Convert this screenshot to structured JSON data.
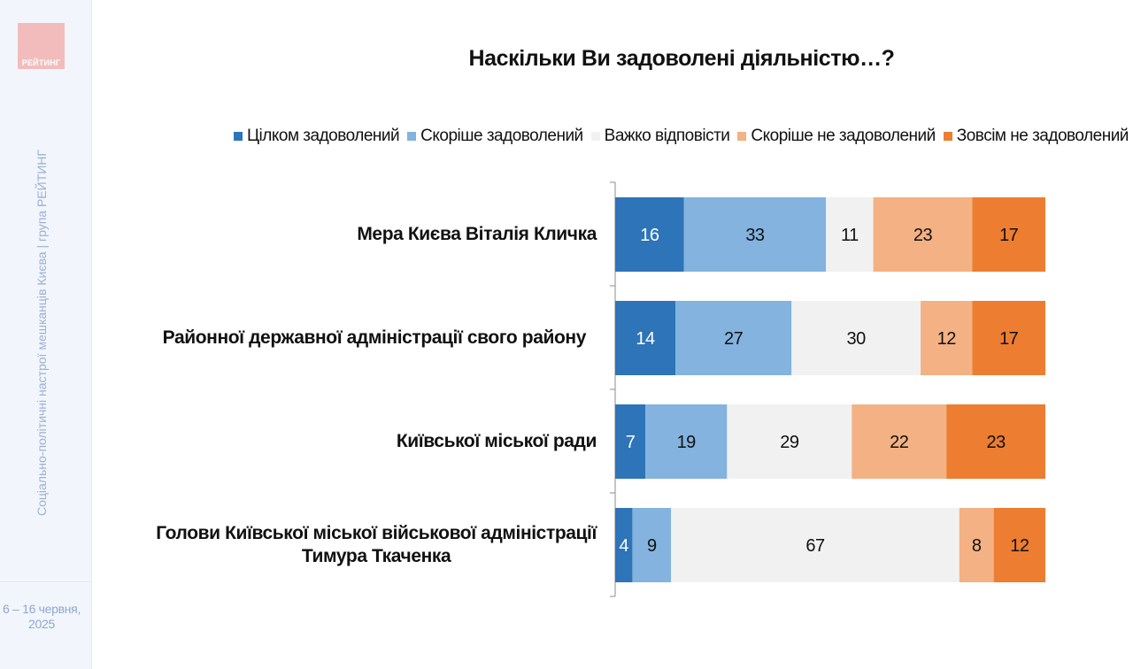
{
  "sidebar": {
    "logo_text": "РЕЙТИНГ",
    "vertical_caption": "Соціально-політичні настрої мешканців Києва | група РЕЙТИНГ",
    "date_line1": "6 – 16 червня,",
    "date_line2": "2025"
  },
  "colors": {
    "sidebar_bg": "#f2f6fc",
    "logo_bg": "#f3bcbc",
    "series": [
      "#2e74b8",
      "#83b3de",
      "#f1f1f1",
      "#f4b183",
      "#ed7d31"
    ]
  },
  "chart_data": {
    "type": "bar",
    "orientation": "horizontal",
    "stacked": true,
    "percent": true,
    "title": "Наскільки Ви задоволені діяльністю…?",
    "xlabel": "",
    "ylabel": "",
    "xlim": [
      0,
      100
    ],
    "grid": false,
    "legend_position": "top",
    "categories": [
      "Мера Києва Віталія Кличка",
      "Районної державної адміністрації свого району",
      "Київської міської ради",
      "Голови Київської міської військової адміністрації Тимура Ткаченка"
    ],
    "category_lines": [
      [
        "Мера Києва Віталія Кличка"
      ],
      [
        "Районної державної адміністрації свого району"
      ],
      [
        "Київської міської ради"
      ],
      [
        "Голови Київської міської військової адміністрації",
        "Тимура Ткаченка"
      ]
    ],
    "series": [
      {
        "name": "Цілком задоволений",
        "color": "#2e74b8",
        "label_color": "#ffffff",
        "values": [
          16,
          14,
          7,
          4
        ]
      },
      {
        "name": "Скоріше задоволений",
        "color": "#83b3de",
        "label_color": "#111111",
        "values": [
          33,
          27,
          19,
          9
        ]
      },
      {
        "name": "Важко відповісти",
        "color": "#f1f1f1",
        "label_color": "#111111",
        "values": [
          11,
          30,
          29,
          67
        ]
      },
      {
        "name": "Скоріше не задоволений",
        "color": "#f4b183",
        "label_color": "#111111",
        "values": [
          23,
          12,
          22,
          8
        ]
      },
      {
        "name": "Зовсім не задоволений",
        "color": "#ed7d31",
        "label_color": "#111111",
        "values": [
          17,
          17,
          23,
          12
        ]
      }
    ]
  }
}
